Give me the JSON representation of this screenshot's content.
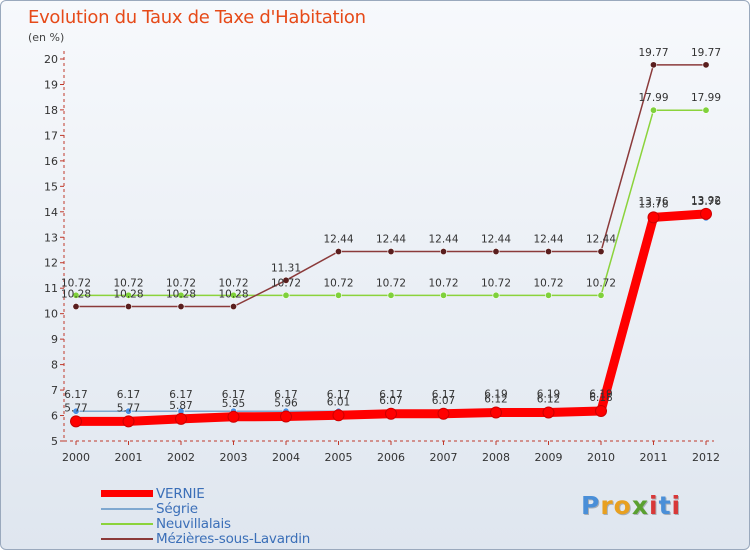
{
  "chart_data": {
    "type": "line",
    "title": "Evolution du Taux de Taxe d'Habitation",
    "ylabel": "(en %)",
    "xlabel": "",
    "ylim": [
      5,
      20
    ],
    "yticks": [
      5,
      6,
      7,
      8,
      9,
      10,
      11,
      12,
      13,
      14,
      15,
      16,
      17,
      18,
      19,
      20
    ],
    "grid": false,
    "legend_position": "bottom-left",
    "categories": [
      "2000",
      "2001",
      "2002",
      "2003",
      "2004",
      "2005",
      "2006",
      "2007",
      "2008",
      "2009",
      "2010",
      "2011",
      "2012"
    ],
    "series": [
      {
        "name": "VERNIE",
        "color": "#ff0000",
        "values": [
          5.77,
          5.77,
          5.87,
          5.95,
          5.96,
          6.01,
          6.07,
          6.07,
          6.12,
          6.12,
          6.18,
          13.78,
          13.92
        ],
        "labels": [
          "5.77",
          "5.77",
          "5.87",
          "5.95",
          "5.96",
          "6.01",
          "6.07",
          "6.07",
          "6.12",
          "6.12",
          "6.18",
          "13.78",
          "13.92"
        ]
      },
      {
        "name": "Ségrie",
        "color": "#7fa8d0",
        "values": [
          6.17,
          6.17,
          6.17,
          6.17,
          6.17,
          6.17,
          6.17,
          6.17,
          6.19,
          6.19,
          6.19,
          13.76,
          13.76
        ],
        "labels": [
          "6.17",
          "6.17",
          "6.17",
          "6.17",
          "6.17",
          "6.17",
          "6.17",
          "6.17",
          "6.19",
          "6.19",
          "6.19",
          "13.76",
          "13.76"
        ]
      },
      {
        "name": "Neuvillalais",
        "color": "#8bd33b",
        "values": [
          10.72,
          10.72,
          10.72,
          10.72,
          10.72,
          10.72,
          10.72,
          10.72,
          10.72,
          10.72,
          10.72,
          17.99,
          17.99
        ],
        "labels": [
          "10.72",
          "10.72",
          "10.72",
          "10.72",
          "10.72",
          "10.72",
          "10.72",
          "10.72",
          "10.72",
          "10.72",
          "10.72",
          "17.99",
          "17.99"
        ]
      },
      {
        "name": "Mézières-sous-Lavardin",
        "color": "#8b3a3a",
        "values": [
          10.28,
          10.28,
          10.28,
          10.28,
          11.31,
          12.44,
          12.44,
          12.44,
          12.44,
          12.44,
          12.44,
          19.77,
          19.77
        ],
        "labels": [
          "10.28",
          "10.28",
          "10.28",
          "10.28",
          "11.31",
          "12.44",
          "12.44",
          "12.44",
          "12.44",
          "12.44",
          "12.44",
          "19.77",
          "19.77"
        ]
      }
    ]
  },
  "logo": {
    "letters": [
      "P",
      "r",
      "o",
      "x",
      "i",
      "t",
      "i"
    ],
    "colors": [
      "#4a8fd8",
      "#e8a020",
      "#e8a020",
      "#5aa030",
      "#d83838",
      "#4a8fd8",
      "#d83838"
    ]
  }
}
